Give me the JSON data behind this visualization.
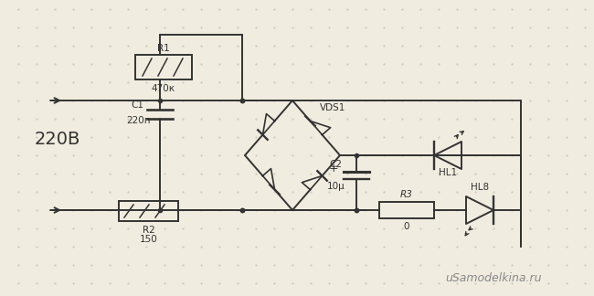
{
  "bg_color": "#f0ece0",
  "line_color": "#333333",
  "text_color": "#333333",
  "lw": 1.4,
  "title": "",
  "watermark": "uSamodelkina.ru",
  "components": {
    "R1": {
      "label": "R1",
      "value": "470к"
    },
    "R2": {
      "label": "R2",
      "value": "150"
    },
    "R3": {
      "label": "R3",
      "value": "0"
    },
    "C1": {
      "label": "C1",
      "value": "220п"
    },
    "C2": {
      "label": "C2",
      "value": "10μ"
    },
    "VDS1": {
      "label": "VDS1"
    },
    "HL1": {
      "label": "HL1"
    },
    "HL8": {
      "label": "HL8"
    },
    "voltage": "220B"
  }
}
